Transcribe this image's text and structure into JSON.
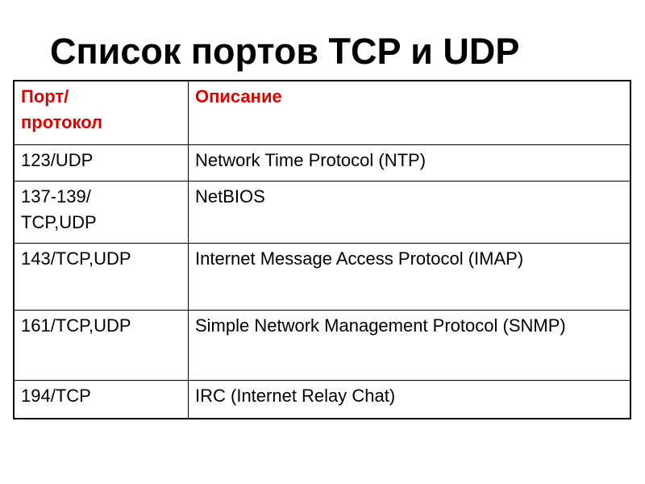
{
  "title": "Список портов TCP и UDP",
  "colors": {
    "header_text": "#e00000"
  },
  "table": {
    "headers": [
      "Порт/ протокол",
      "Описание"
    ],
    "rows": [
      {
        "port": "123/UDP",
        "description": "Network Time Protocol (NTP)"
      },
      {
        "port": "137-139/ TCP,UDP",
        "description": "NetBIOS"
      },
      {
        "port": "143/TCP,UDP",
        "description": "Internet Message Access Protocol (IMAP)"
      },
      {
        "port": "161/TCP,UDP",
        "description": "Simple Network Management Protocol (SNMP)"
      },
      {
        "port": "194/TCP",
        "description": "IRC (Internet Relay Chat)"
      }
    ]
  }
}
